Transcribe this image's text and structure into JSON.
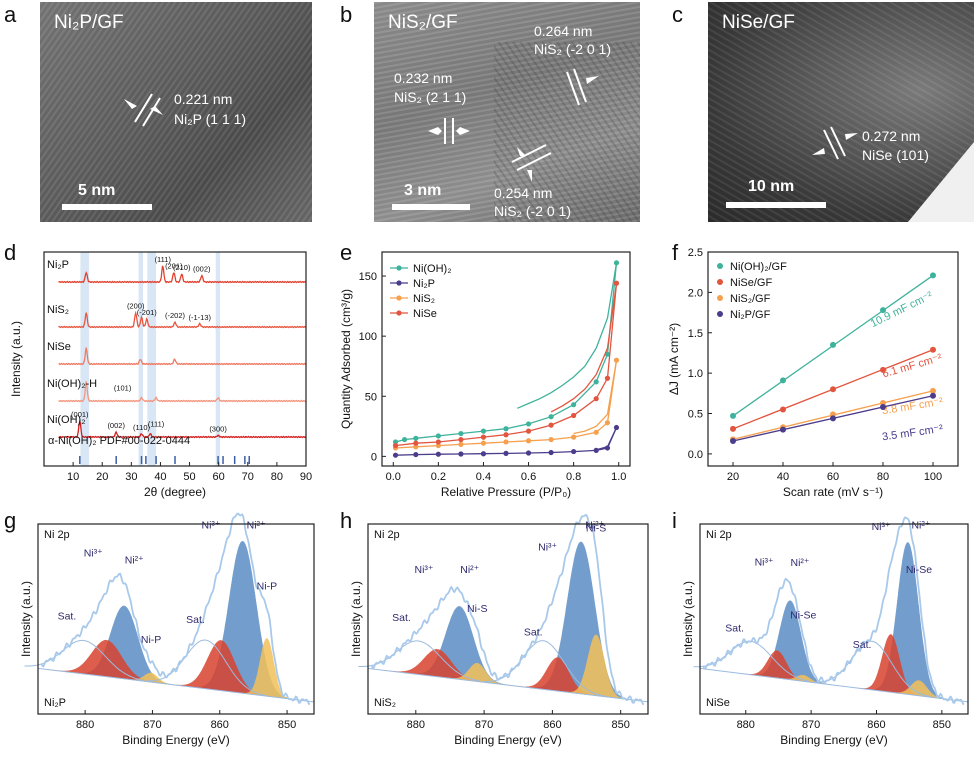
{
  "panels": {
    "a": {
      "letter": "a",
      "title": "Ni₂P/GF",
      "spacing": "0.221 nm",
      "plane": "Ni₂P (1 1 1)",
      "scale": "5 nm"
    },
    "b": {
      "letter": "b",
      "title": "NiS₂/GF",
      "spacing1": "0.264 nm",
      "plane1": "NiS₂ (-2 0 1)",
      "spacing2": "0.232 nm",
      "plane2": "NiS₂ (2 1 1)",
      "spacing3": "0.254 nm",
      "plane3": "NiS₂ (-2 0 1)",
      "scale": "3 nm"
    },
    "c": {
      "letter": "c",
      "title": "NiSe/GF",
      "spacing": "0.272 nm",
      "plane": "NiSe (101)",
      "scale": "10 nm"
    },
    "d": {
      "letter": "d"
    },
    "e": {
      "letter": "e"
    },
    "f": {
      "letter": "f"
    },
    "g": {
      "letter": "g"
    },
    "h": {
      "letter": "h"
    },
    "i": {
      "letter": "i"
    }
  },
  "colors": {
    "teal": "#3fb29b",
    "purple": "#4b3c8c",
    "orange": "#f5a04e",
    "red": "#e2553f",
    "xps_blue": "#5b8dc4",
    "xps_red": "#d8432f",
    "xps_yellow": "#f2c15a"
  },
  "chart_data": [
    {
      "id": "d",
      "type": "line",
      "xlabel": "2θ (degree)",
      "ylabel": "Intensity (a.u.)",
      "xlim": [
        0,
        90
      ],
      "xticks": [
        10,
        20,
        30,
        40,
        50,
        60,
        70,
        80,
        90
      ],
      "series": [
        {
          "name": "Ni₂P",
          "peaks": [
            [
              14.5,
              6
            ],
            [
              40.8,
              10
            ],
            [
              44.6,
              6
            ],
            [
              47.3,
              5
            ],
            [
              54.2,
              4
            ]
          ],
          "labels": [
            {
              "x": 40.8,
              "t": "(111)"
            },
            {
              "x": 44.6,
              "t": "(201)"
            },
            {
              "x": 47.3,
              "t": "(210)"
            },
            {
              "x": 54.2,
              "t": "(002)"
            }
          ]
        },
        {
          "name": "NiS₂",
          "peaks": [
            [
              14.5,
              9
            ],
            [
              31.5,
              9
            ],
            [
              33.5,
              6
            ],
            [
              35.3,
              5
            ],
            [
              45.0,
              3
            ],
            [
              53.5,
              2
            ]
          ],
          "labels": [
            {
              "x": 31.5,
              "t": "(200)"
            },
            {
              "x": 35.3,
              "t": "(-201)"
            },
            {
              "x": 45.0,
              "t": "(-202)"
            },
            {
              "x": 53.5,
              "t": "(-1-13)"
            }
          ]
        },
        {
          "name": "NiSe",
          "peaks": [
            [
              14.5,
              10
            ],
            [
              33.1,
              3
            ],
            [
              44.9,
              3
            ]
          ],
          "labels": []
        },
        {
          "name": "Ni(OH)₂-H",
          "peaks": [
            [
              14.5,
              12
            ],
            [
              33.5,
              2
            ],
            [
              38.5,
              2
            ],
            [
              59.8,
              2
            ]
          ],
          "labels": [
            {
              "x": 27,
              "t": "(101)"
            }
          ]
        },
        {
          "name": "Ni(OH)₂",
          "peaks": [
            [
              12.3,
              10
            ],
            [
              24.8,
              3
            ],
            [
              33.5,
              2
            ],
            [
              36.5,
              2
            ],
            [
              59.8,
              1
            ]
          ],
          "labels": [
            {
              "x": 12.3,
              "t": "(001)"
            },
            {
              "x": 24.8,
              "t": "(002)"
            },
            {
              "x": 33.5,
              "t": "(110)"
            },
            {
              "x": 38.5,
              "t": "(111)"
            },
            {
              "x": 59.8,
              "t": "(300)"
            }
          ]
        }
      ],
      "reference": {
        "name": "α-Ni(OH)₂ PDF#00-022-0444",
        "sticks": [
          12.3,
          24.8,
          33.5,
          35.0,
          38.5,
          45.0,
          59.8,
          61.5,
          65.5,
          69.0,
          70.5
        ]
      },
      "highlight_bands": [
        [
          12.5,
          15.5
        ],
        [
          32.5,
          34
        ],
        [
          35.5,
          38.5
        ],
        [
          59,
          60.5
        ]
      ]
    },
    {
      "id": "e",
      "type": "line",
      "xlabel": "Relative Pressure (P/P₀)",
      "ylabel": "Quantity Adsorbed (cm³/g)",
      "xlim": [
        -0.05,
        1.05
      ],
      "ylim": [
        -8,
        170
      ],
      "xticks": [
        0.0,
        0.2,
        0.4,
        0.6,
        0.8,
        1.0
      ],
      "yticks": [
        0,
        50,
        100,
        150
      ],
      "legend": "top-left",
      "series": [
        {
          "name": "Ni(OH)₂",
          "color": "#3fb29b",
          "ads": [
            [
              0.01,
              12
            ],
            [
              0.05,
              14
            ],
            [
              0.1,
              15
            ],
            [
              0.2,
              17
            ],
            [
              0.3,
              19
            ],
            [
              0.4,
              21
            ],
            [
              0.5,
              23
            ],
            [
              0.6,
              27
            ],
            [
              0.7,
              33
            ],
            [
              0.8,
              43
            ],
            [
              0.9,
              62
            ],
            [
              0.95,
              85
            ],
            [
              0.99,
              161
            ]
          ],
          "des": [
            [
              0.99,
              161
            ],
            [
              0.95,
              115
            ],
            [
              0.9,
              90
            ],
            [
              0.85,
              75
            ],
            [
              0.8,
              66
            ],
            [
              0.75,
              59
            ],
            [
              0.7,
              53
            ],
            [
              0.65,
              48
            ],
            [
              0.6,
              44
            ],
            [
              0.55,
              40
            ]
          ]
        },
        {
          "name": "Ni₂P",
          "color": "#4b3c8c",
          "ads": [
            [
              0.01,
              1
            ],
            [
              0.1,
              1.5
            ],
            [
              0.2,
              1.8
            ],
            [
              0.3,
              2
            ],
            [
              0.4,
              2.2
            ],
            [
              0.5,
              2.5
            ],
            [
              0.6,
              2.8
            ],
            [
              0.7,
              3.2
            ],
            [
              0.8,
              4
            ],
            [
              0.9,
              5
            ],
            [
              0.95,
              7
            ],
            [
              0.99,
              24
            ]
          ],
          "des": [
            [
              0.99,
              24
            ],
            [
              0.95,
              8
            ],
            [
              0.9,
              5.5
            ]
          ]
        },
        {
          "name": "NiS₂",
          "color": "#f5a04e",
          "ads": [
            [
              0.01,
              7
            ],
            [
              0.1,
              8
            ],
            [
              0.2,
              9
            ],
            [
              0.3,
              10
            ],
            [
              0.4,
              11
            ],
            [
              0.5,
              12
            ],
            [
              0.6,
              13
            ],
            [
              0.7,
              14
            ],
            [
              0.8,
              16
            ],
            [
              0.9,
              20
            ],
            [
              0.95,
              28
            ],
            [
              0.99,
              80
            ]
          ],
          "des": [
            [
              0.99,
              80
            ],
            [
              0.95,
              35
            ],
            [
              0.9,
              25
            ],
            [
              0.85,
              21
            ],
            [
              0.8,
              19
            ]
          ]
        },
        {
          "name": "NiSe",
          "color": "#e2553f",
          "ads": [
            [
              0.01,
              9
            ],
            [
              0.1,
              11
            ],
            [
              0.2,
              12
            ],
            [
              0.3,
              14
            ],
            [
              0.4,
              16
            ],
            [
              0.5,
              18
            ],
            [
              0.6,
              21
            ],
            [
              0.7,
              26
            ],
            [
              0.8,
              34
            ],
            [
              0.9,
              48
            ],
            [
              0.95,
              65
            ],
            [
              0.99,
              144
            ]
          ],
          "des": [
            [
              0.99,
              144
            ],
            [
              0.95,
              90
            ],
            [
              0.9,
              68
            ],
            [
              0.85,
              56
            ],
            [
              0.8,
              48
            ],
            [
              0.75,
              42
            ],
            [
              0.7,
              37
            ]
          ]
        }
      ]
    },
    {
      "id": "f",
      "type": "scatter",
      "xlabel": "Scan rate (mV s⁻¹)",
      "ylabel": "ΔJ (mA cm⁻²)",
      "xlim": [
        10,
        110
      ],
      "ylim": [
        -0.15,
        2.5
      ],
      "xticks": [
        20,
        40,
        60,
        80,
        100
      ],
      "yticks": [
        0.0,
        0.5,
        1.0,
        1.5,
        2.0,
        2.5
      ],
      "legend": "top-left",
      "series": [
        {
          "name": "Ni(OH)₂/GF",
          "color": "#3fb29b",
          "x": [
            20,
            40,
            60,
            80,
            100
          ],
          "y": [
            0.47,
            0.91,
            1.35,
            1.78,
            2.21
          ],
          "label": "10.9 mF cm⁻²"
        },
        {
          "name": "NiSe/GF",
          "color": "#e2553f",
          "x": [
            20,
            40,
            60,
            80,
            100
          ],
          "y": [
            0.31,
            0.55,
            0.8,
            1.04,
            1.29
          ],
          "label": "6.1 mF cm⁻²"
        },
        {
          "name": "NiS₂/GF",
          "color": "#f5a04e",
          "x": [
            20,
            40,
            60,
            80,
            100
          ],
          "y": [
            0.18,
            0.33,
            0.49,
            0.63,
            0.78
          ],
          "label": "3.8 mF cm⁻²"
        },
        {
          "name": "Ni₂P/GF",
          "color": "#4b3c8c",
          "x": [
            20,
            40,
            60,
            80,
            100
          ],
          "y": [
            0.16,
            0.3,
            0.44,
            0.58,
            0.72
          ],
          "label": "3.5 mF cm⁻²"
        }
      ]
    },
    {
      "id": "g",
      "type": "line",
      "title": "Ni 2p",
      "sample": "Ni₂P",
      "xlabel": "Binding Energy (eV)",
      "ylabel": "Intensity (a.u.)",
      "xlim": [
        887,
        846
      ],
      "xticks": [
        880,
        870,
        860,
        850
      ],
      "peaks": [
        {
          "name": "Ni²⁺",
          "c": 856.6,
          "h": 1.0,
          "w": 2.0,
          "color": "#5b8dc4"
        },
        {
          "name": "Ni²⁺",
          "c": 874.2,
          "h": 0.48,
          "w": 2.0,
          "color": "#5b8dc4"
        },
        {
          "name": "Ni³⁺",
          "c": 859.8,
          "h": 0.33,
          "w": 2.0,
          "color": "#d8432f"
        },
        {
          "name": "Ni³⁺",
          "c": 876.8,
          "h": 0.24,
          "w": 2.2,
          "color": "#d8432f"
        },
        {
          "name": "Ni-P",
          "c": 853.0,
          "h": 0.38,
          "w": 1.0,
          "color": "#f2c15a"
        },
        {
          "name": "Ni-P",
          "c": 870.2,
          "h": 0.06,
          "w": 1.0,
          "color": "#f2c15a"
        }
      ],
      "labels": [
        "Sat.",
        "Sat.",
        "Ni³⁺",
        "Ni²⁺",
        "Ni-P",
        "Ni³⁺",
        "Ni²⁺",
        "Ni-P"
      ]
    },
    {
      "id": "h",
      "type": "line",
      "title": "Ni 2p",
      "sample": "NiS₂",
      "xlabel": "Binding Energy (eV)",
      "ylabel": "Intensity (a.u.)",
      "xlim": [
        887,
        846
      ],
      "xticks": [
        880,
        870,
        860,
        850
      ],
      "peaks": [
        {
          "name": "Ni²⁺",
          "c": 855.8,
          "h": 1.0,
          "w": 2.0,
          "color": "#5b8dc4"
        },
        {
          "name": "Ni²⁺",
          "c": 873.6,
          "h": 0.48,
          "w": 2.0,
          "color": "#5b8dc4"
        },
        {
          "name": "Ni³⁺",
          "c": 859.2,
          "h": 0.22,
          "w": 1.6,
          "color": "#d8432f"
        },
        {
          "name": "Ni³⁺",
          "c": 876.8,
          "h": 0.18,
          "w": 2.0,
          "color": "#d8432f"
        },
        {
          "name": "Ni-S",
          "c": 853.6,
          "h": 0.4,
          "w": 1.2,
          "color": "#f2c15a"
        },
        {
          "name": "Ni-S",
          "c": 871.0,
          "h": 0.12,
          "w": 1.2,
          "color": "#f2c15a"
        }
      ],
      "labels": [
        "Sat.",
        "Sat.",
        "Ni³⁺",
        "Ni²⁺",
        "Ni-S",
        "Ni³⁺",
        "Ni²⁺",
        "Ni-S"
      ]
    },
    {
      "id": "i",
      "type": "line",
      "title": "Ni 2p",
      "sample": "NiSe",
      "xlabel": "Binding Energy (eV)",
      "ylabel": "Intensity (a.u.)",
      "xlim": [
        887,
        846
      ],
      "xticks": [
        880,
        870,
        860,
        850
      ],
      "peaks": [
        {
          "name": "Ni²⁺",
          "c": 855.2,
          "h": 1.0,
          "w": 1.6,
          "color": "#5b8dc4"
        },
        {
          "name": "Ni²⁺",
          "c": 873.2,
          "h": 0.52,
          "w": 1.6,
          "color": "#5b8dc4"
        },
        {
          "name": "Ni³⁺",
          "c": 857.8,
          "h": 0.38,
          "w": 1.3,
          "color": "#d8432f"
        },
        {
          "name": "Ni³⁺",
          "c": 875.2,
          "h": 0.18,
          "w": 1.4,
          "color": "#d8432f"
        },
        {
          "name": "Ni-Se",
          "c": 853.5,
          "h": 0.1,
          "w": 1.2,
          "color": "#f2c15a"
        },
        {
          "name": "Ni-Se",
          "c": 871.2,
          "h": 0.04,
          "w": 1.0,
          "color": "#f2c15a"
        }
      ],
      "labels": [
        "Sat.",
        "Sat.",
        "Ni³⁺",
        "Ni²⁺",
        "Ni-Se",
        "Ni³⁺",
        "Ni²⁺",
        "Ni-Se"
      ]
    }
  ]
}
